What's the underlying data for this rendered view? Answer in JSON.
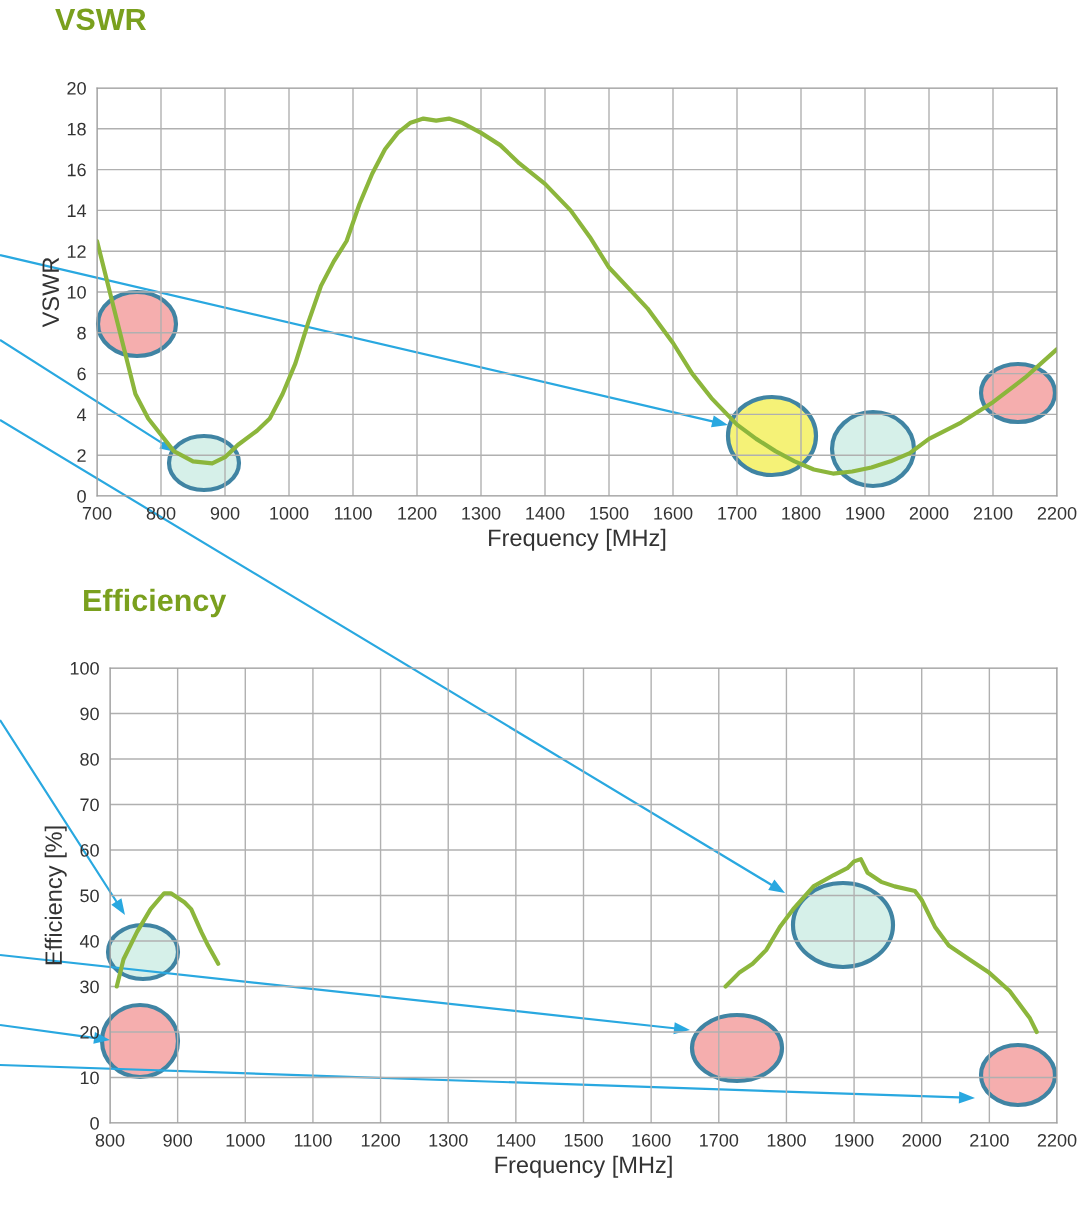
{
  "chart_data": [
    {
      "type": "line",
      "title": "VSWR",
      "xlabel": "Frequency [MHz]",
      "ylabel": "VSWR",
      "grid": true,
      "xlim": [
        700,
        2200
      ],
      "ylim": [
        0,
        20
      ],
      "xticks": [
        700,
        800,
        900,
        1000,
        1100,
        1200,
        1300,
        1400,
        1500,
        1600,
        1700,
        1800,
        1900,
        2000,
        2100,
        2200
      ],
      "yticks": [
        0,
        2,
        4,
        6,
        8,
        10,
        12,
        14,
        16,
        18,
        20
      ],
      "x": [
        700,
        720,
        740,
        760,
        780,
        800,
        820,
        850,
        880,
        900,
        920,
        950,
        970,
        990,
        1010,
        1030,
        1050,
        1070,
        1090,
        1110,
        1130,
        1150,
        1170,
        1190,
        1210,
        1230,
        1250,
        1270,
        1300,
        1330,
        1360,
        1400,
        1440,
        1470,
        1500,
        1530,
        1560,
        1600,
        1630,
        1660,
        1700,
        1730,
        1760,
        1790,
        1820,
        1850,
        1880,
        1910,
        1940,
        1970,
        2000,
        2050,
        2100,
        2150,
        2200
      ],
      "series": [
        {
          "color": "#8cb63c",
          "values": [
            12.5,
            10,
            7.5,
            5,
            3.8,
            3,
            2.2,
            1.7,
            1.6,
            1.9,
            2.5,
            3.2,
            3.8,
            5,
            6.5,
            8.5,
            10.3,
            11.5,
            12.5,
            14.3,
            15.8,
            17,
            17.8,
            18.3,
            18.5,
            18.4,
            18.5,
            18.3,
            17.8,
            17.2,
            16.3,
            15.3,
            14,
            12.7,
            11.2,
            10.2,
            9.2,
            7.5,
            6,
            4.8,
            3.5,
            2.8,
            2.2,
            1.7,
            1.3,
            1.1,
            1.2,
            1.4,
            1.7,
            2.1,
            2.8,
            3.6,
            4.6,
            5.8,
            7.2
          ]
        }
      ]
    },
    {
      "type": "line",
      "title": "Efficiency",
      "xlabel": "Frequency [MHz]",
      "ylabel": "Efficiency [%]",
      "grid": true,
      "xlim": [
        800,
        2200
      ],
      "ylim": [
        0,
        100
      ],
      "xticks": [
        800,
        900,
        1000,
        1100,
        1200,
        1300,
        1400,
        1500,
        1600,
        1700,
        1800,
        1900,
        2000,
        2100,
        2200
      ],
      "yticks": [
        0,
        10,
        20,
        30,
        40,
        50,
        60,
        70,
        80,
        90,
        100
      ],
      "x": [
        810,
        820,
        840,
        860,
        880,
        890,
        900,
        910,
        920,
        935,
        945,
        960,
        1300,
        1710,
        1730,
        1750,
        1770,
        1790,
        1810,
        1840,
        1870,
        1890,
        1900,
        1910,
        1920,
        1940,
        1960,
        1990,
        2000,
        2020,
        2040,
        2070,
        2100,
        2130,
        2160,
        2170
      ],
      "series": [
        {
          "color": "#8cb63c",
          "values": [
            30,
            36,
            42,
            47,
            50.5,
            50.5,
            49.5,
            48.5,
            47,
            42,
            39,
            35,
            null,
            30,
            33,
            35,
            38,
            43,
            47,
            52,
            54.5,
            56,
            57.5,
            58,
            55,
            53,
            52,
            51,
            49,
            43,
            39,
            36,
            33,
            29,
            23,
            20
          ]
        }
      ]
    }
  ]
}
